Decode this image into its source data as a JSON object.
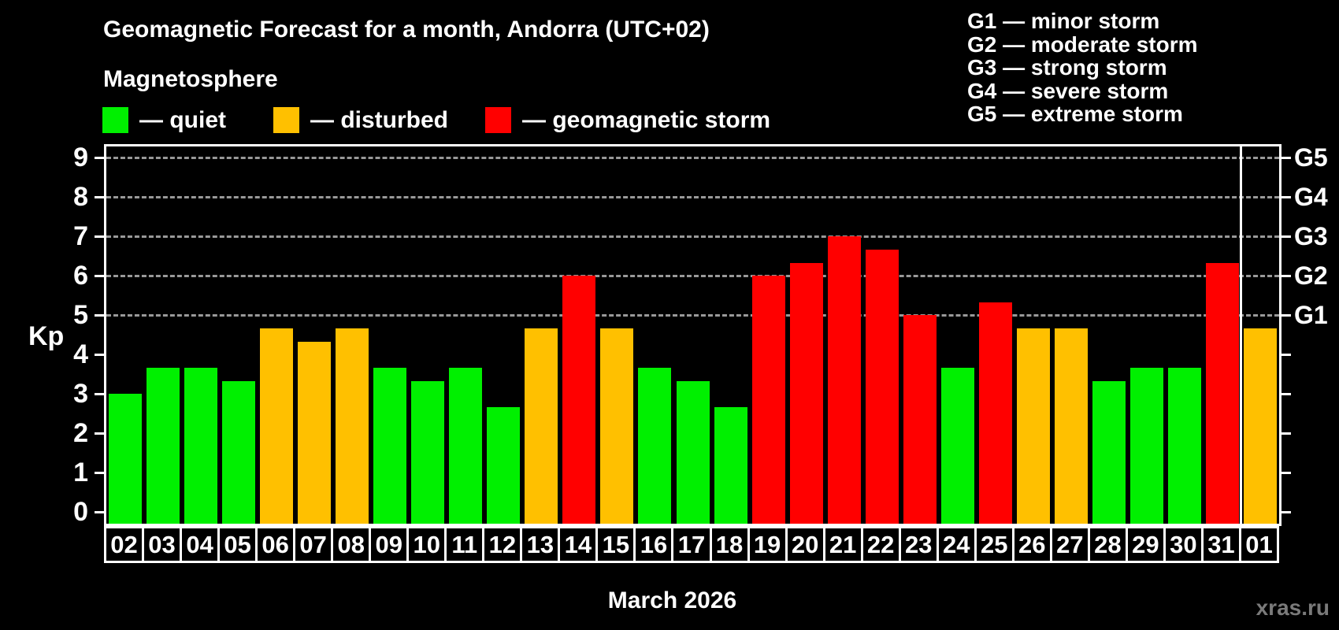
{
  "title": "Geomagnetic Forecast for a month, Andorra (UTC+02)",
  "subtitle": "Magnetosphere",
  "kp_axis_label": "Kp",
  "xaxis_title": "March 2026",
  "watermark": "xras.ru",
  "legend": {
    "items": [
      {
        "key": "quiet",
        "label": "— quiet",
        "color": "#00F000"
      },
      {
        "key": "disturbed",
        "label": "— disturbed",
        "color": "#FFC000"
      },
      {
        "key": "storm",
        "label": "— geomagnetic storm",
        "color": "#FF0000"
      }
    ]
  },
  "g_scale_legend": [
    "G1 — minor storm",
    "G2 — moderate storm",
    "G3 — strong storm",
    "G4 — severe storm",
    "G5 — extreme storm"
  ],
  "chart_data": {
    "type": "bar",
    "title": "Geomagnetic Forecast for a month, Andorra (UTC+02)",
    "xlabel": "March 2026",
    "ylabel": "Kp",
    "ylim": [
      0,
      9.3
    ],
    "yticks": [
      0,
      1,
      2,
      3,
      4,
      5,
      6,
      7,
      8,
      9
    ],
    "gridlines_at": [
      5,
      6,
      7,
      8,
      9
    ],
    "grid_style": "dashed horizontal gray lines at Kp 5-9",
    "legend_position": "top-left",
    "right_axis": [
      {
        "kp": 5,
        "label": "G1"
      },
      {
        "kp": 6,
        "label": "G2"
      },
      {
        "kp": 7,
        "label": "G3"
      },
      {
        "kp": 8,
        "label": "G4"
      },
      {
        "kp": 9,
        "label": "G5"
      }
    ],
    "state_colors": {
      "quiet": "#00F000",
      "disturbed": "#FFC000",
      "storm": "#FF0000"
    },
    "month_separator_before_category": "01",
    "categories": [
      "02",
      "03",
      "04",
      "05",
      "06",
      "07",
      "08",
      "09",
      "10",
      "11",
      "12",
      "13",
      "14",
      "15",
      "16",
      "17",
      "18",
      "19",
      "20",
      "21",
      "22",
      "23",
      "24",
      "25",
      "26",
      "27",
      "28",
      "29",
      "30",
      "31",
      "01"
    ],
    "values": [
      3.0,
      3.67,
      3.67,
      3.33,
      4.67,
      4.33,
      4.67,
      3.67,
      3.33,
      3.67,
      2.67,
      4.67,
      6.0,
      4.67,
      3.67,
      3.33,
      2.67,
      6.0,
      6.33,
      7.0,
      6.67,
      5.0,
      3.67,
      5.33,
      4.67,
      4.67,
      3.33,
      3.67,
      3.67,
      6.33,
      4.67
    ],
    "states": [
      "quiet",
      "quiet",
      "quiet",
      "quiet",
      "disturbed",
      "disturbed",
      "disturbed",
      "quiet",
      "quiet",
      "quiet",
      "quiet",
      "disturbed",
      "storm",
      "disturbed",
      "quiet",
      "quiet",
      "quiet",
      "storm",
      "storm",
      "storm",
      "storm",
      "storm",
      "quiet",
      "storm",
      "disturbed",
      "disturbed",
      "quiet",
      "quiet",
      "quiet",
      "storm",
      "disturbed"
    ]
  }
}
